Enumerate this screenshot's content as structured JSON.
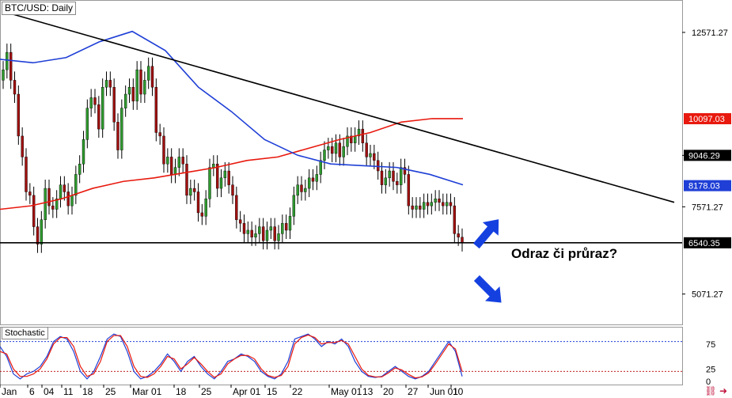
{
  "chart_data": {
    "type": "candlestick",
    "title": "BTC/USD: Daily",
    "annotation": "Odraz či průraz?",
    "price_axis": {
      "ylim": [
        4200,
        13500
      ],
      "tick_labels": [
        "12571.27",
        "9046.29",
        "7571.27",
        "5071.27"
      ],
      "tick_values": [
        12571.27,
        9046.29,
        7571.27,
        5071.27
      ],
      "marker_labels": [
        {
          "text": "10097.03",
          "value": 10097.03,
          "color": "#e8190e"
        },
        {
          "text": "9046.29",
          "value": 9046.29,
          "color": "#000000"
        },
        {
          "text": "8178.03",
          "value": 8178.03,
          "color": "#1f3fd6"
        },
        {
          "text": "6540.35",
          "value": 6540.35,
          "color": "#000000"
        }
      ]
    },
    "x_axis": {
      "tick_labels": [
        "Jan",
        "6",
        "04",
        "11",
        "18",
        "25",
        "Mar 01",
        "18",
        "25",
        "Apr 01",
        "15",
        "22",
        "May 01",
        "13",
        "20",
        "27",
        "Jun 01",
        "10"
      ]
    },
    "candles_close": [
      11500,
      12000,
      11200,
      10800,
      9600,
      9000,
      8000,
      7900,
      7000,
      6500,
      7200,
      8100,
      7600,
      7500,
      7800,
      8200,
      8000,
      7600,
      7900,
      8500,
      8800,
      9500,
      10400,
      10700,
      10500,
      9800,
      11000,
      11200,
      11000,
      10000,
      9200,
      10400,
      10800,
      11000,
      10600,
      11500,
      10800,
      11200,
      11600,
      11000,
      9700,
      9600,
      8800,
      9000,
      8500,
      8700,
      9000,
      8800,
      7900,
      8100,
      8000,
      7400,
      7300,
      7800,
      8700,
      8800,
      8100,
      8400,
      8600,
      8200,
      7900,
      7200,
      7100,
      6800,
      6900,
      6700,
      6800,
      7000,
      6600,
      6900,
      7000,
      6600,
      6800,
      7100,
      6900,
      7300,
      7900,
      8200,
      8000,
      8100,
      8400,
      8300,
      8500,
      8900,
      9200,
      9300,
      9100,
      9400,
      9000,
      9300,
      9600,
      9400,
      9600,
      9800,
      9400,
      9000,
      9100,
      8900,
      8600,
      8200,
      8400,
      8600,
      8300,
      8200,
      8700,
      8500,
      7600,
      7500,
      7600,
      7500,
      7700,
      7600,
      7700,
      7800,
      7700,
      7600,
      7700,
      7600,
      6800,
      6700,
      6540
    ],
    "series": [
      {
        "name": "MA200",
        "color": "#e8190e",
        "values": [
          7500,
          7600,
          7800,
          8100,
          8300,
          8400,
          8550,
          8700,
          8900,
          9000,
          9250,
          9500,
          9700,
          10000,
          10100,
          10100
        ]
      },
      {
        "name": "MA50",
        "color": "#1f3fd6",
        "values": [
          11800,
          11700,
          11850,
          12300,
          12600,
          12050,
          11000,
          10300,
          9500,
          9050,
          8800,
          8750,
          8700,
          8500,
          8200
        ]
      }
    ],
    "trendline": {
      "from": 13100,
      "to": 7700
    },
    "support": 6540.35,
    "arrows": [
      "up",
      "down"
    ],
    "stochastic": {
      "label": "Stochastic",
      "tick_labels": [
        "75",
        "25",
        "0"
      ],
      "tick_values": [
        75,
        25,
        0
      ],
      "levels": [
        80,
        20
      ],
      "k": [
        70,
        50,
        15,
        5,
        15,
        20,
        30,
        50,
        80,
        90,
        85,
        60,
        20,
        5,
        20,
        50,
        85,
        95,
        90,
        60,
        20,
        5,
        10,
        20,
        35,
        55,
        40,
        20,
        40,
        50,
        30,
        15,
        5,
        20,
        40,
        45,
        55,
        50,
        40,
        20,
        10,
        5,
        15,
        40,
        85,
        90,
        95,
        85,
        70,
        80,
        75,
        85,
        70,
        40,
        20,
        10,
        8,
        10,
        20,
        30,
        20,
        10,
        5,
        10,
        20,
        40,
        60,
        80,
        60,
        10
      ],
      "d": [
        60,
        55,
        25,
        10,
        10,
        15,
        25,
        45,
        75,
        88,
        88,
        70,
        30,
        10,
        15,
        40,
        80,
        92,
        92,
        70,
        30,
        10,
        8,
        15,
        30,
        50,
        45,
        25,
        35,
        48,
        35,
        20,
        8,
        15,
        35,
        45,
        52,
        52,
        45,
        25,
        12,
        8,
        12,
        30,
        75,
        88,
        93,
        88,
        75,
        78,
        78,
        82,
        75,
        50,
        25,
        12,
        9,
        9,
        17,
        27,
        23,
        14,
        7,
        9,
        17,
        35,
        55,
        75,
        65,
        20
      ]
    }
  }
}
